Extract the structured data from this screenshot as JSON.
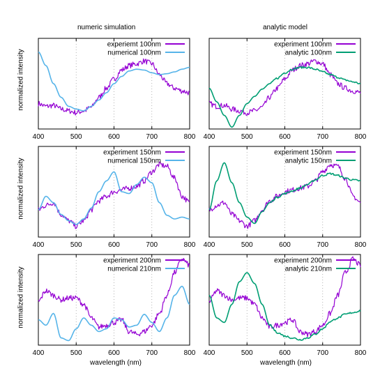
{
  "figure": {
    "column_titles": [
      "numeric simulation",
      "analytic model"
    ],
    "ylabel": "normalized intensity",
    "xlabel": "wavelength (nm)"
  },
  "colors": {
    "experiment": "#9400d3",
    "numerical": "#56b4e9",
    "analytic": "#009e73",
    "grid": "#a0a0a0",
    "axis": "#000000"
  },
  "chart_data": [
    {
      "type": "line",
      "row": 0,
      "col": 0,
      "xlim": [
        400,
        800
      ],
      "xticks": [
        400,
        500,
        600,
        700,
        800
      ],
      "ylim": [
        0,
        1
      ],
      "grid": "vertical dotted",
      "legend": "top-right",
      "series": [
        {
          "name": "experiemt 100nm",
          "color_key": "experiment",
          "x": [
            400,
            420,
            440,
            460,
            480,
            500,
            520,
            540,
            560,
            580,
            600,
            620,
            640,
            660,
            680,
            700,
            720,
            740,
            760,
            780,
            800
          ],
          "y": [
            0.28,
            0.25,
            0.26,
            0.22,
            0.2,
            0.18,
            0.2,
            0.24,
            0.35,
            0.45,
            0.55,
            0.65,
            0.7,
            0.72,
            0.75,
            0.72,
            0.6,
            0.5,
            0.45,
            0.42,
            0.4
          ]
        },
        {
          "name": "numerical 100nm",
          "color_key": "numerical",
          "x": [
            400,
            420,
            440,
            460,
            480,
            500,
            520,
            540,
            560,
            580,
            600,
            620,
            640,
            660,
            680,
            700,
            720,
            740,
            760,
            780,
            800
          ],
          "y": [
            0.85,
            0.7,
            0.5,
            0.35,
            0.25,
            0.22,
            0.2,
            0.25,
            0.32,
            0.4,
            0.5,
            0.58,
            0.64,
            0.66,
            0.65,
            0.62,
            0.6,
            0.61,
            0.63,
            0.66,
            0.68
          ]
        }
      ]
    },
    {
      "type": "line",
      "row": 0,
      "col": 1,
      "xlim": [
        400,
        800
      ],
      "xticks": [
        400,
        500,
        600,
        700,
        800
      ],
      "ylim": [
        0,
        1
      ],
      "grid": "vertical dotted",
      "legend": "top-right",
      "series": [
        {
          "name": "experiment 100nm",
          "color_key": "experiment",
          "x": [
            400,
            420,
            440,
            460,
            480,
            500,
            520,
            540,
            560,
            580,
            600,
            620,
            640,
            660,
            680,
            700,
            720,
            740,
            760,
            780,
            800
          ],
          "y": [
            0.28,
            0.25,
            0.26,
            0.22,
            0.2,
            0.18,
            0.2,
            0.24,
            0.35,
            0.45,
            0.55,
            0.65,
            0.7,
            0.72,
            0.75,
            0.72,
            0.6,
            0.5,
            0.45,
            0.42,
            0.4
          ]
        },
        {
          "name": "analytic 100nm",
          "color_key": "analytic",
          "x": [
            400,
            420,
            440,
            460,
            480,
            500,
            520,
            540,
            560,
            580,
            600,
            620,
            640,
            660,
            680,
            700,
            720,
            740,
            760,
            780,
            800
          ],
          "y": [
            0.45,
            0.3,
            0.15,
            0.02,
            0.15,
            0.28,
            0.36,
            0.44,
            0.5,
            0.56,
            0.62,
            0.66,
            0.68,
            0.68,
            0.66,
            0.63,
            0.6,
            0.57,
            0.54,
            0.52,
            0.5
          ]
        }
      ]
    },
    {
      "type": "line",
      "row": 1,
      "col": 0,
      "xlim": [
        400,
        800
      ],
      "xticks": [
        400,
        500,
        600,
        700,
        800
      ],
      "ylim": [
        0,
        1
      ],
      "grid": "vertical dotted",
      "legend": "top-right",
      "series": [
        {
          "name": "experiment 150nm",
          "color_key": "experiment",
          "x": [
            400,
            420,
            440,
            460,
            480,
            500,
            520,
            540,
            560,
            580,
            600,
            620,
            640,
            660,
            680,
            700,
            720,
            740,
            760,
            780,
            800
          ],
          "y": [
            0.3,
            0.35,
            0.38,
            0.25,
            0.18,
            0.12,
            0.18,
            0.3,
            0.4,
            0.45,
            0.5,
            0.52,
            0.54,
            0.56,
            0.62,
            0.72,
            0.8,
            0.78,
            0.65,
            0.45,
            0.38
          ]
        },
        {
          "name": "numerical 150nm",
          "color_key": "numerical",
          "x": [
            400,
            420,
            440,
            460,
            480,
            500,
            520,
            540,
            560,
            580,
            600,
            620,
            640,
            660,
            680,
            700,
            720,
            740,
            760,
            780,
            800
          ],
          "y": [
            0.3,
            0.45,
            0.38,
            0.25,
            0.18,
            0.14,
            0.2,
            0.32,
            0.5,
            0.62,
            0.72,
            0.5,
            0.48,
            0.58,
            0.66,
            0.6,
            0.38,
            0.24,
            0.2,
            0.22,
            0.2
          ]
        }
      ]
    },
    {
      "type": "line",
      "row": 1,
      "col": 1,
      "xlim": [
        400,
        800
      ],
      "xticks": [
        400,
        500,
        600,
        700,
        800
      ],
      "ylim": [
        0,
        1
      ],
      "grid": "vertical dotted",
      "legend": "top-right",
      "series": [
        {
          "name": "experiment 150nm",
          "color_key": "experiment",
          "x": [
            400,
            420,
            440,
            460,
            480,
            500,
            520,
            540,
            560,
            580,
            600,
            620,
            640,
            660,
            680,
            700,
            720,
            740,
            760,
            780,
            800
          ],
          "y": [
            0.3,
            0.35,
            0.38,
            0.25,
            0.18,
            0.12,
            0.18,
            0.3,
            0.4,
            0.45,
            0.5,
            0.52,
            0.54,
            0.56,
            0.62,
            0.72,
            0.8,
            0.78,
            0.65,
            0.45,
            0.38
          ]
        },
        {
          "name": "analytic 150nm",
          "color_key": "analytic",
          "x": [
            400,
            420,
            440,
            460,
            480,
            500,
            520,
            540,
            560,
            580,
            600,
            620,
            640,
            660,
            680,
            700,
            720,
            740,
            760,
            780,
            800
          ],
          "y": [
            0.3,
            0.62,
            0.82,
            0.6,
            0.38,
            0.22,
            0.15,
            0.28,
            0.38,
            0.44,
            0.48,
            0.51,
            0.54,
            0.58,
            0.63,
            0.68,
            0.7,
            0.68,
            0.65,
            0.63,
            0.62
          ]
        }
      ]
    },
    {
      "type": "line",
      "row": 2,
      "col": 0,
      "xlim": [
        400,
        800
      ],
      "xticks": [
        400,
        500,
        600,
        700,
        800
      ],
      "ylim": [
        0,
        1
      ],
      "grid": "vertical dotted",
      "legend": "top-right",
      "series": [
        {
          "name": "experiment 200nm",
          "color_key": "experiment",
          "x": [
            400,
            420,
            440,
            460,
            480,
            500,
            520,
            540,
            560,
            580,
            600,
            620,
            640,
            660,
            680,
            700,
            720,
            740,
            760,
            780,
            800
          ],
          "y": [
            0.48,
            0.6,
            0.55,
            0.5,
            0.52,
            0.52,
            0.45,
            0.3,
            0.2,
            0.22,
            0.25,
            0.28,
            0.15,
            0.12,
            0.15,
            0.22,
            0.35,
            0.55,
            0.8,
            0.95,
            0.88
          ]
        },
        {
          "name": "numerical 210nm",
          "color_key": "numerical",
          "x": [
            400,
            420,
            440,
            460,
            480,
            500,
            520,
            540,
            560,
            580,
            600,
            620,
            640,
            660,
            680,
            700,
            720,
            740,
            760,
            780,
            800
          ],
          "y": [
            0.28,
            0.22,
            0.35,
            0.08,
            0.05,
            0.18,
            0.3,
            0.22,
            0.15,
            0.18,
            0.3,
            0.28,
            0.2,
            0.22,
            0.34,
            0.25,
            0.15,
            0.3,
            0.55,
            0.65,
            0.45
          ]
        }
      ]
    },
    {
      "type": "line",
      "row": 2,
      "col": 1,
      "xlim": [
        400,
        800
      ],
      "xticks": [
        400,
        500,
        600,
        700,
        800
      ],
      "ylim": [
        0,
        1
      ],
      "grid": "vertical dotted",
      "legend": "top-right",
      "series": [
        {
          "name": "experiment 200nm",
          "color_key": "experiment",
          "x": [
            400,
            420,
            440,
            460,
            480,
            500,
            520,
            540,
            560,
            580,
            600,
            620,
            640,
            660,
            680,
            700,
            720,
            740,
            760,
            780,
            800
          ],
          "y": [
            0.48,
            0.6,
            0.55,
            0.5,
            0.52,
            0.52,
            0.45,
            0.3,
            0.2,
            0.22,
            0.25,
            0.28,
            0.15,
            0.12,
            0.15,
            0.22,
            0.35,
            0.55,
            0.8,
            0.95,
            0.88
          ]
        },
        {
          "name": "analytic 210nm",
          "color_key": "analytic",
          "x": [
            400,
            420,
            440,
            460,
            480,
            500,
            520,
            540,
            560,
            580,
            600,
            620,
            640,
            660,
            680,
            700,
            720,
            740,
            760,
            780,
            800
          ],
          "y": [
            0.55,
            0.3,
            0.25,
            0.45,
            0.7,
            0.8,
            0.68,
            0.45,
            0.22,
            0.14,
            0.1,
            0.08,
            0.06,
            0.08,
            0.12,
            0.18,
            0.26,
            0.3,
            0.34,
            0.36,
            0.38
          ]
        }
      ]
    }
  ]
}
